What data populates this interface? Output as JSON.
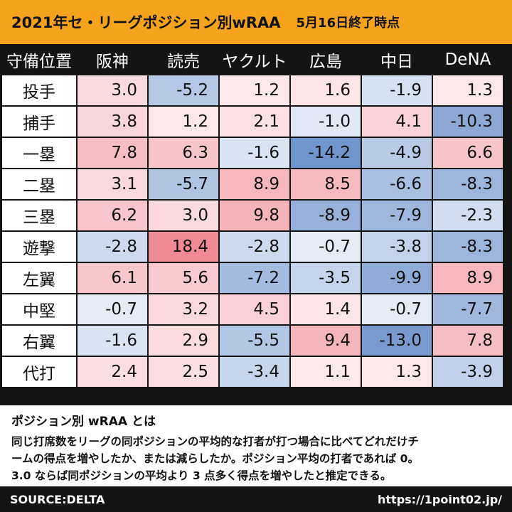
{
  "header": {
    "title": "2021年セ・リーグポジション別wRAA",
    "as_of": "5月16日終了時点"
  },
  "colors": {
    "header_bg": "#f5a21c",
    "positive": "#f08a96",
    "negative": "#7094cc",
    "neutral": "#ffffff"
  },
  "chart_data": {
    "type": "heatmap",
    "title": "2021年セ・リーグポジション別wRAA",
    "subtitle": "5月16日終了時点",
    "corner_label": "守備位置",
    "teams": [
      "阪神",
      "読売",
      "ヤクルト",
      "広島",
      "中日",
      "DeNA"
    ],
    "positions": [
      "投手",
      "捕手",
      "一塁",
      "二塁",
      "三塁",
      "遊撃",
      "左翼",
      "中堅",
      "右翼",
      "代打"
    ],
    "values": [
      [
        3.0,
        -5.2,
        1.2,
        1.6,
        -1.9,
        1.3
      ],
      [
        3.8,
        1.2,
        2.1,
        -1.0,
        4.1,
        -10.3
      ],
      [
        7.8,
        6.3,
        -1.6,
        -14.2,
        -4.9,
        6.6
      ],
      [
        3.1,
        -5.7,
        8.9,
        8.5,
        -6.6,
        -8.3
      ],
      [
        6.2,
        3.0,
        9.8,
        -8.9,
        -7.9,
        -2.3
      ],
      [
        -2.8,
        18.4,
        -2.8,
        -0.7,
        -3.8,
        -8.3
      ],
      [
        6.1,
        5.6,
        -7.2,
        -3.5,
        -9.9,
        8.9
      ],
      [
        -0.7,
        3.2,
        4.5,
        1.4,
        -0.7,
        -7.7
      ],
      [
        -1.6,
        2.9,
        -5.5,
        9.4,
        -13.0,
        7.8
      ],
      [
        2.4,
        2.5,
        -3.4,
        1.1,
        1.3,
        -3.9
      ]
    ],
    "color_scale": {
      "min": -14.2,
      "max": 18.4,
      "center": 0
    }
  },
  "note": {
    "title": "ポジション別 wRAA とは",
    "lines": [
      "同じ打席数をリーグの同ポジションの平均的な打者が打つ場合に比べてどれだけチ",
      "ームの得点を増やしたか、または減らしたか。ポジション平均の打者であれば 0。",
      "3.0 ならば同ポジションの平均より 3 点多く得点を増やしたと推定できる。"
    ]
  },
  "footer": {
    "source": "SOURCE:DELTA",
    "url": "https://1point02.jp/"
  }
}
